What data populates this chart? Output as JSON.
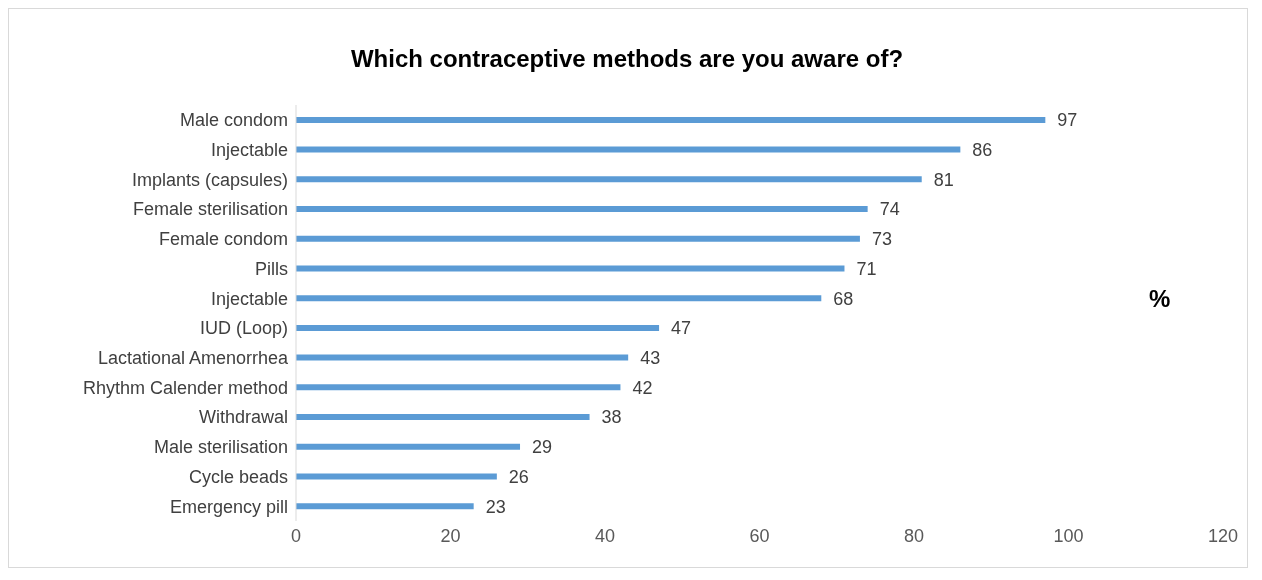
{
  "chart_data": {
    "type": "bar",
    "orientation": "horizontal",
    "title": "Which contraceptive methods are you aware of?",
    "xlabel": "%",
    "categories": [
      "Male condom",
      "Injectable",
      "Implants  (capsules)",
      "Female sterilisation",
      "Female condom",
      "Pills",
      "Injectable",
      "IUD (Loop)",
      "Lactational Amenorrhea",
      "Rhythm Calender method",
      "Withdrawal",
      "Male sterilisation",
      "Cycle beads",
      "Emergency pill"
    ],
    "values": [
      97,
      86,
      81,
      74,
      73,
      71,
      68,
      47,
      43,
      42,
      38,
      29,
      26,
      23
    ],
    "color": "#5b9bd5",
    "xlim": [
      0,
      120
    ],
    "xticks": [
      0,
      20,
      40,
      60,
      80,
      100,
      120
    ],
    "data_labels": true
  }
}
